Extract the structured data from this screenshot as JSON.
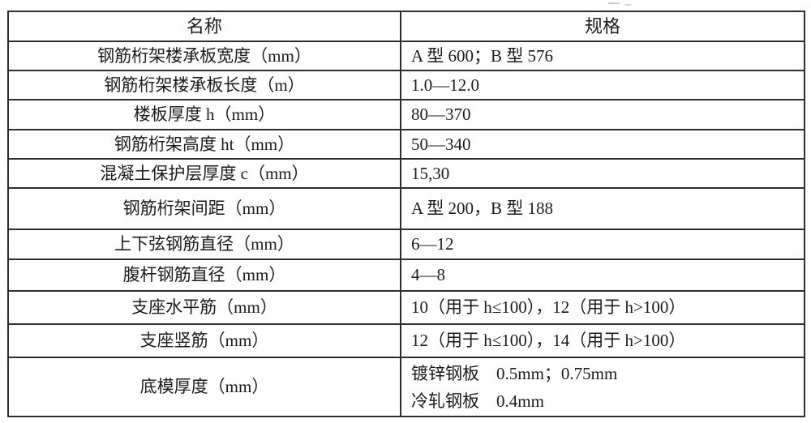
{
  "table": {
    "headers": {
      "name": "名称",
      "spec": "规格"
    },
    "rows": [
      {
        "name": "钢筋桁架楼承板宽度（mm）",
        "spec": "A 型 600；B 型 576"
      },
      {
        "name": "钢筋桁架楼承板长度（m）",
        "spec": "1.0—12.0"
      },
      {
        "name": "楼板厚度 h（mm）",
        "spec": "80—370"
      },
      {
        "name": "钢筋桁架高度 ht（mm）",
        "spec": "50—340"
      },
      {
        "name": "混凝土保护层厚度 c（mm）",
        "spec": "15,30"
      },
      {
        "name": "钢筋桁架间距（mm）",
        "spec": "A 型 200，B 型 188"
      },
      {
        "name": "上下弦钢筋直径（mm）",
        "spec": "6—12"
      },
      {
        "name": "腹杆钢筋直径（mm）",
        "spec": "4—8"
      },
      {
        "name": "支座水平筋（mm）",
        "spec": "10（用于 h≤100），12（用于 h>100）"
      },
      {
        "name": "支座竖筋（mm）",
        "spec": "12（用于 h≤100），14（用于 h>100）"
      },
      {
        "name": "底模厚度（mm）",
        "spec_line1": "镀锌钢板　0.5mm；0.75mm",
        "spec_line2": "冷轧钢板　0.4mm"
      }
    ],
    "colors": {
      "border": "#2e2e2e",
      "text": "#1b1b1b",
      "background": "#ffffff"
    }
  }
}
